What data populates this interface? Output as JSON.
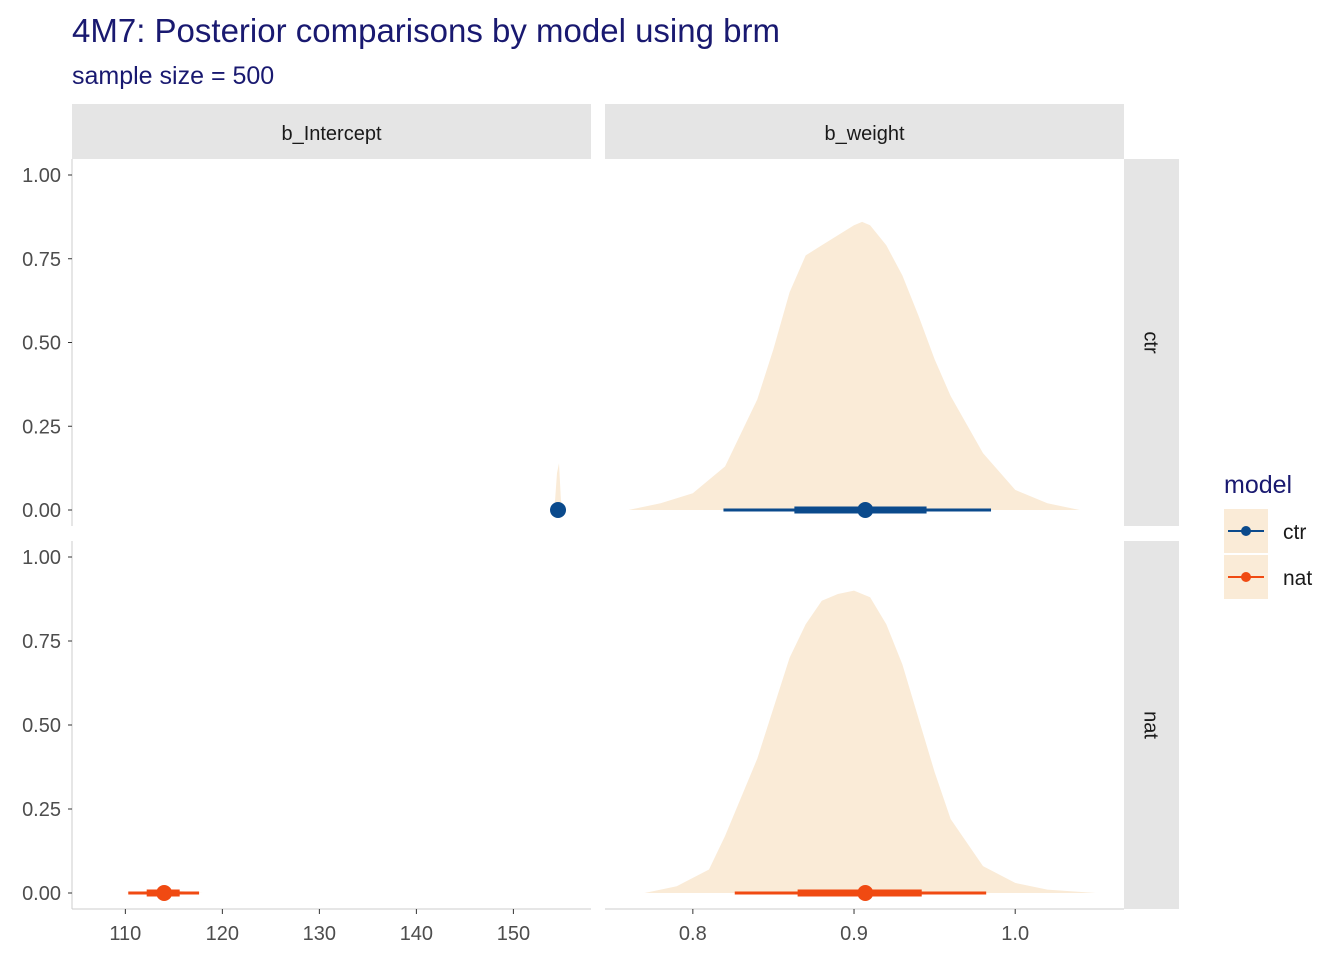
{
  "chart_data": {
    "type": "area",
    "title": "4M7: Posterior comparisons by model using brm",
    "subtitle": "sample size = 500",
    "facet_columns": [
      "b_Intercept",
      "b_weight"
    ],
    "facet_rows": [
      "ctr",
      "nat"
    ],
    "legend": {
      "title": "model",
      "placement": "right",
      "entries": [
        {
          "label": "ctr",
          "color": "#0b4a8c"
        },
        {
          "label": "nat",
          "color": "#f04a12"
        }
      ]
    },
    "colors": {
      "density_fill": "#faebd7",
      "strip_fill": "#e5e5e5",
      "ctr": "#0b4a8c",
      "nat": "#f04a12",
      "title": "#191970"
    },
    "grid": false,
    "y_axis": {
      "range": [
        0,
        1
      ],
      "ticks": [
        "0.00",
        "0.25",
        "0.50",
        "0.75",
        "1.00"
      ]
    },
    "x_axes": [
      {
        "column": "b_Intercept",
        "range": [
          104.5,
          158
        ],
        "ticks": [
          110,
          120,
          130,
          140,
          150
        ]
      },
      {
        "column": "b_weight",
        "range": [
          0.7455,
          1.0675
        ],
        "ticks": [
          "0.8",
          "0.9",
          "1.0"
        ]
      }
    ],
    "panels": [
      {
        "row": "ctr",
        "column": "b_Intercept",
        "density": {
          "x": [
            154.1,
            154.3,
            154.5,
            154.7,
            154.9,
            155.1
          ],
          "y": [
            0,
            0.03,
            0.11,
            0.14,
            0.03,
            0
          ]
        },
        "point": 154.6,
        "interval_66": [
          154.3,
          154.9
        ],
        "interval_95": [
          154.0,
          155.2
        ]
      },
      {
        "row": "nat",
        "column": "b_Intercept",
        "density": {
          "x": [
            110.0,
            114.0,
            118.0
          ],
          "y": [
            0,
            0.01,
            0
          ]
        },
        "point": 114.0,
        "interval_66": [
          112.2,
          115.6
        ],
        "interval_95": [
          110.3,
          117.6
        ]
      },
      {
        "row": "ctr",
        "column": "b_weight",
        "density": {
          "x": [
            0.76,
            0.78,
            0.8,
            0.82,
            0.84,
            0.85,
            0.86,
            0.87,
            0.88,
            0.89,
            0.9,
            0.905,
            0.91,
            0.92,
            0.93,
            0.94,
            0.95,
            0.96,
            0.98,
            1.0,
            1.02,
            1.04
          ],
          "y": [
            0,
            0.02,
            0.05,
            0.13,
            0.33,
            0.48,
            0.65,
            0.76,
            0.79,
            0.82,
            0.85,
            0.86,
            0.85,
            0.79,
            0.7,
            0.58,
            0.45,
            0.34,
            0.17,
            0.06,
            0.02,
            0
          ]
        },
        "point": 0.907,
        "interval_66": [
          0.863,
          0.945
        ],
        "interval_95": [
          0.819,
          0.985
        ]
      },
      {
        "row": "nat",
        "column": "b_weight",
        "density": {
          "x": [
            0.77,
            0.79,
            0.81,
            0.82,
            0.84,
            0.85,
            0.86,
            0.87,
            0.88,
            0.89,
            0.9,
            0.91,
            0.92,
            0.93,
            0.94,
            0.95,
            0.96,
            0.98,
            1.0,
            1.02,
            1.05
          ],
          "y": [
            0,
            0.02,
            0.07,
            0.17,
            0.4,
            0.55,
            0.7,
            0.8,
            0.87,
            0.89,
            0.9,
            0.88,
            0.8,
            0.68,
            0.52,
            0.36,
            0.22,
            0.08,
            0.03,
            0.01,
            0
          ]
        },
        "point": 0.907,
        "interval_66": [
          0.865,
          0.942
        ],
        "interval_95": [
          0.826,
          0.982
        ]
      }
    ]
  }
}
